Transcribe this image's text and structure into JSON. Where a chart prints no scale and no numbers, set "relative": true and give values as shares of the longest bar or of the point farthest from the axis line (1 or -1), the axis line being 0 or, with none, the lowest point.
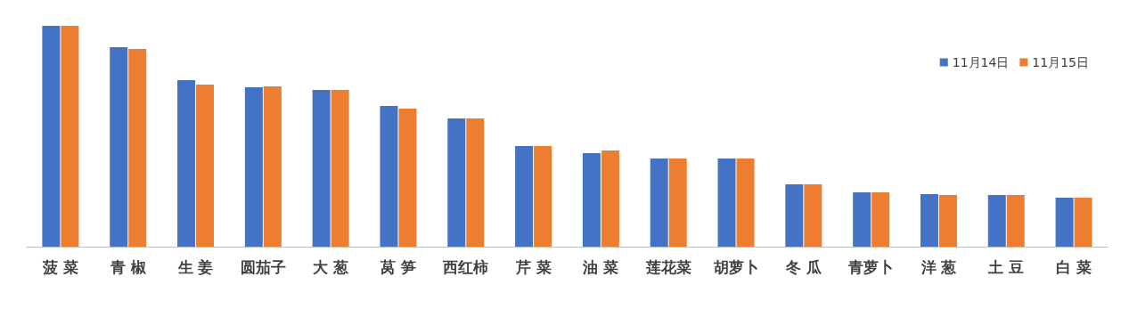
{
  "chart_data": {
    "type": "bar",
    "relative": true,
    "categories": [
      "菠 菜",
      "青 椒",
      "生 姜",
      "圆茄子",
      "大 葱",
      "莴 笋",
      "西红柿",
      "芹 菜",
      "油 菜",
      "莲花菜",
      "胡萝卜",
      "冬 瓜",
      "青萝卜",
      "洋 葱",
      "土 豆",
      "白 菜"
    ],
    "series": [
      {
        "name": "11月14日",
        "color": "#4472c4",
        "values": [
          1,
          0.903,
          0.754,
          0.722,
          0.71,
          0.637,
          0.581,
          0.456,
          0.423,
          0.399,
          0.399,
          0.282,
          0.246,
          0.238,
          0.234,
          0.222
        ]
      },
      {
        "name": "11月15日",
        "color": "#ed7d31",
        "values": [
          1,
          0.895,
          0.734,
          0.726,
          0.71,
          0.625,
          0.581,
          0.456,
          0.435,
          0.399,
          0.399,
          0.282,
          0.246,
          0.234,
          0.234,
          0.222
        ]
      }
    ],
    "legend": "top right"
  }
}
